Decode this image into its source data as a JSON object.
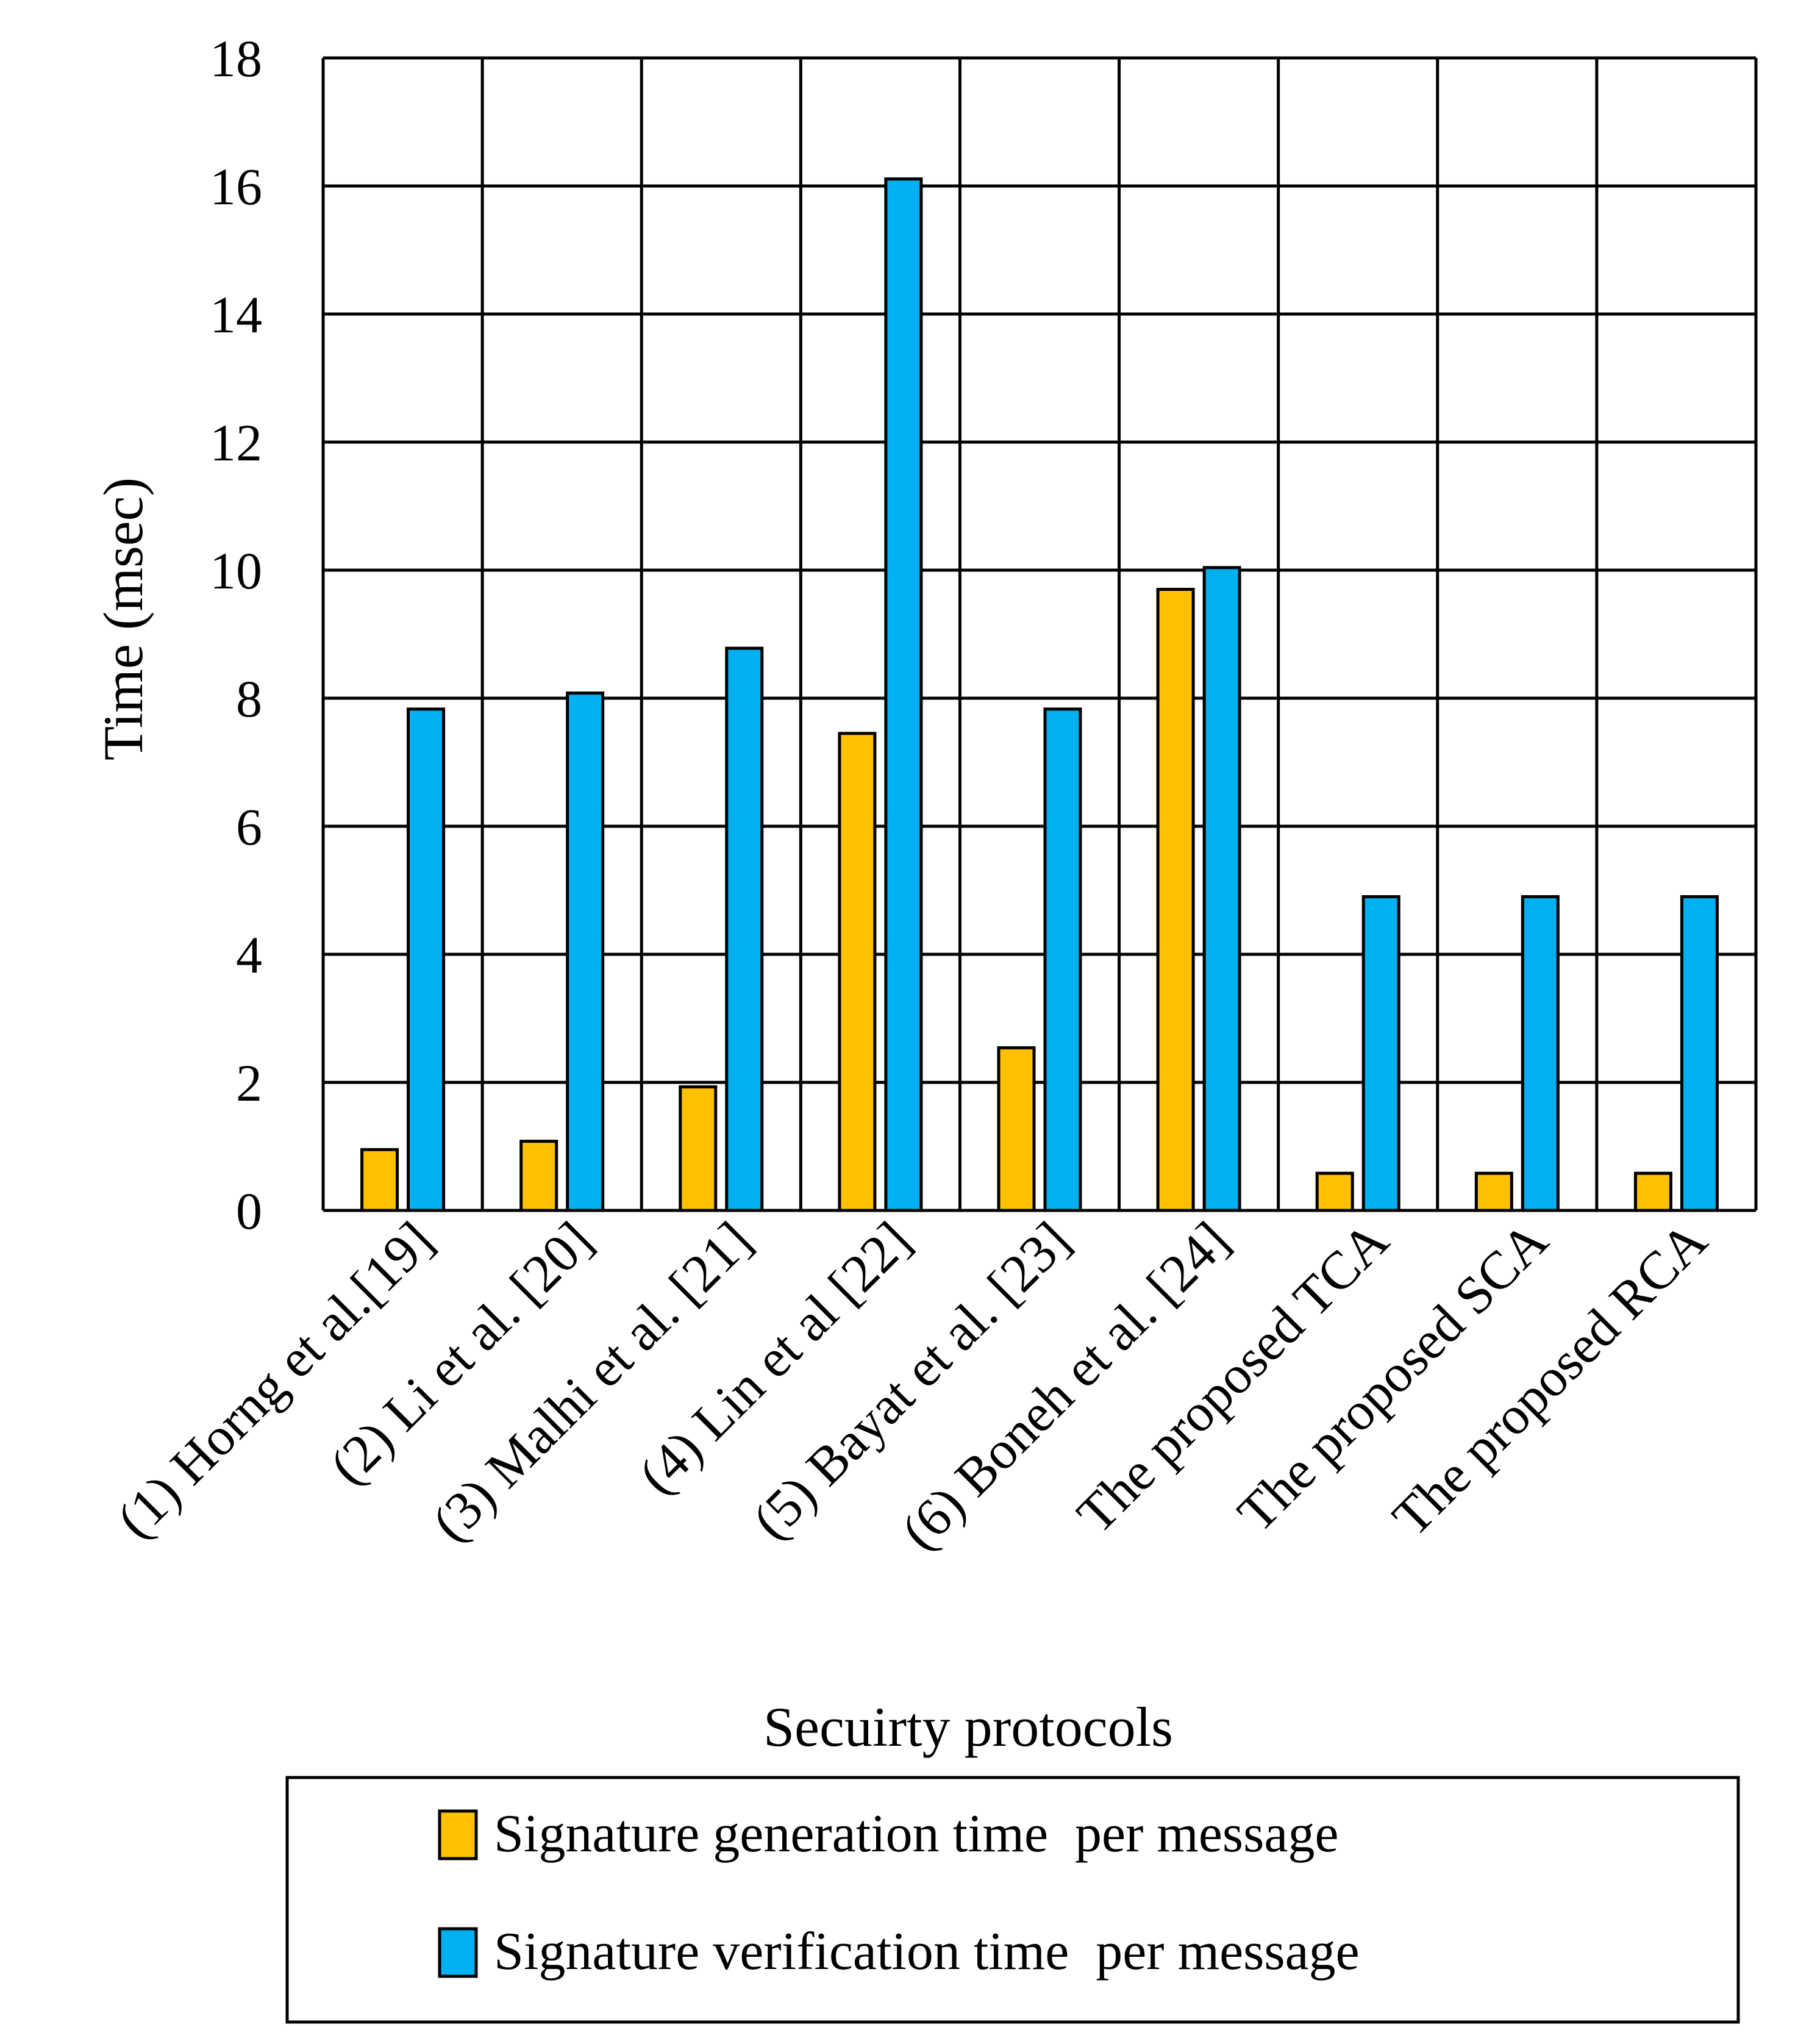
{
  "chart_data": {
    "type": "bar",
    "title": "",
    "xlabel": "Secuirty protocols",
    "ylabel": "Time (msec)",
    "ylim": [
      0,
      18
    ],
    "yticks": [
      0,
      2,
      4,
      6,
      8,
      10,
      12,
      14,
      16,
      18
    ],
    "grid": true,
    "legend_position": "bottom",
    "categories": [
      "(1) Horng et al.[19]",
      "(2) Li et al.   [20]",
      "(3) Malhi et al. [21]",
      "(4) Lin et al [22]",
      "(5) Bayat et al. [23]",
      "(6) Boneh et al. [24]",
      "The proposed TCA",
      "The proposed SCA",
      "The proposed RCA"
    ],
    "series": [
      {
        "name": "Signature generation time  per message",
        "color": "#FFC000",
        "values": [
          0.95,
          1.08,
          1.93,
          7.45,
          2.54,
          9.7,
          0.58,
          0.58,
          0.58
        ]
      },
      {
        "name": "Signature verification time  per message",
        "color": "#00B0F0",
        "values": [
          7.83,
          8.08,
          8.78,
          16.11,
          7.83,
          10.04,
          4.9,
          4.9,
          4.9
        ]
      }
    ]
  }
}
